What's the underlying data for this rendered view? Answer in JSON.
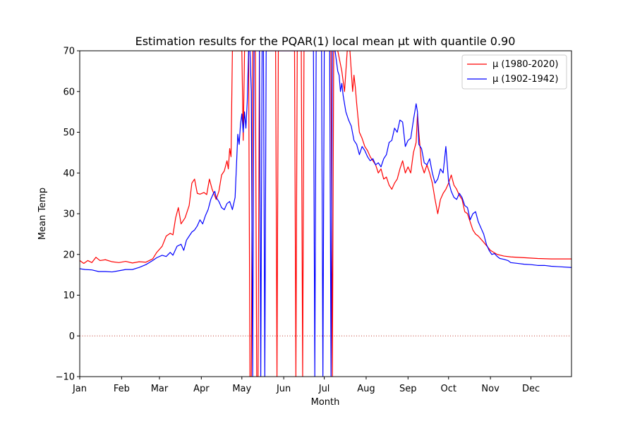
{
  "chart_data": {
    "type": "line",
    "title": "Estimation results for the PQAR(1) local mean μt with quantile 0.90",
    "xlabel": "Month",
    "ylabel": "Mean Temp",
    "ylim": [
      -10,
      70
    ],
    "xlim": [
      1,
      365
    ],
    "grid": false,
    "legend_position": "top-right",
    "x_ticks": [
      {
        "day": 1,
        "label": "Jan"
      },
      {
        "day": 32,
        "label": "Feb"
      },
      {
        "day": 60,
        "label": "Mar"
      },
      {
        "day": 91,
        "label": "Apr"
      },
      {
        "day": 121,
        "label": "May"
      },
      {
        "day": 152,
        "label": "Jun"
      },
      {
        "day": 182,
        "label": "Jul"
      },
      {
        "day": 213,
        "label": "Aug"
      },
      {
        "day": 244,
        "label": "Sep"
      },
      {
        "day": 274,
        "label": "Oct"
      },
      {
        "day": 305,
        "label": "Nov"
      },
      {
        "day": 335,
        "label": "Dec"
      }
    ],
    "y_ticks": [
      -10,
      0,
      10,
      20,
      30,
      40,
      50,
      60,
      70
    ],
    "reference_line": {
      "y": 0,
      "style": "dotted",
      "color": "#c0392b"
    },
    "series": [
      {
        "name": "μ (1980-2020)",
        "color": "#ff0000",
        "points": [
          [
            1,
            18.5
          ],
          [
            4,
            17.8
          ],
          [
            7,
            18.5
          ],
          [
            10,
            18.0
          ],
          [
            13,
            19.3
          ],
          [
            16,
            18.5
          ],
          [
            20,
            18.7
          ],
          [
            25,
            18.2
          ],
          [
            30,
            18.0
          ],
          [
            35,
            18.3
          ],
          [
            40,
            17.9
          ],
          [
            45,
            18.2
          ],
          [
            50,
            18.1
          ],
          [
            55,
            18.9
          ],
          [
            58,
            20.5
          ],
          [
            62,
            22.0
          ],
          [
            65,
            24.5
          ],
          [
            68,
            25.2
          ],
          [
            70,
            24.8
          ],
          [
            72,
            29.0
          ],
          [
            74,
            31.5
          ],
          [
            76,
            27.5
          ],
          [
            79,
            29.0
          ],
          [
            82,
            32.0
          ],
          [
            84,
            37.5
          ],
          [
            86,
            38.5
          ],
          [
            88,
            35.0
          ],
          [
            90,
            34.8
          ],
          [
            93,
            35.2
          ],
          [
            95,
            34.7
          ],
          [
            97,
            38.5
          ],
          [
            99,
            36.0
          ],
          [
            102,
            33.5
          ],
          [
            104,
            35.5
          ],
          [
            106,
            39.5
          ],
          [
            108,
            40.5
          ],
          [
            110,
            43.0
          ],
          [
            111,
            41.0
          ],
          [
            112,
            46.0
          ],
          [
            113,
            44.0
          ],
          [
            114,
            70.0
          ],
          [
            121,
            70.0
          ],
          [
            122,
            48.0
          ],
          [
            123,
            70.0
          ],
          [
            126,
            70.0
          ],
          [
            127,
            -10.0
          ],
          [
            128,
            -10.0
          ],
          [
            129,
            70.0
          ],
          [
            131,
            70.0
          ],
          [
            132,
            -10.0
          ],
          [
            133,
            -10.0
          ],
          [
            134,
            70.0
          ],
          [
            146,
            70.0
          ],
          [
            147,
            -10.0
          ],
          [
            148,
            70.0
          ],
          [
            160,
            70.0
          ],
          [
            161,
            -10.0
          ],
          [
            162,
            70.0
          ],
          [
            165,
            70.0
          ],
          [
            166,
            -10.0
          ],
          [
            167,
            70.0
          ],
          [
            187,
            70.0
          ],
          [
            188,
            -10.0
          ],
          [
            189,
            70.0
          ],
          [
            192,
            70.0
          ],
          [
            195,
            65.0
          ],
          [
            197,
            60.0
          ],
          [
            199,
            70.0
          ],
          [
            201,
            70.0
          ],
          [
            203,
            60.0
          ],
          [
            204,
            64.0
          ],
          [
            205,
            61.0
          ],
          [
            206,
            57.0
          ],
          [
            208,
            50.0
          ],
          [
            210,
            48.5
          ],
          [
            212,
            46.5
          ],
          [
            214,
            45.5
          ],
          [
            216,
            44.0
          ],
          [
            218,
            43.0
          ],
          [
            220,
            42.0
          ],
          [
            222,
            40.0
          ],
          [
            224,
            41.0
          ],
          [
            226,
            38.5
          ],
          [
            228,
            39.0
          ],
          [
            230,
            37.0
          ],
          [
            232,
            36.0
          ],
          [
            234,
            37.5
          ],
          [
            236,
            38.5
          ],
          [
            238,
            41.0
          ],
          [
            240,
            43.0
          ],
          [
            242,
            40.0
          ],
          [
            244,
            41.5
          ],
          [
            246,
            40.0
          ],
          [
            248,
            45.0
          ],
          [
            250,
            47.5
          ],
          [
            251,
            54.5
          ],
          [
            252,
            50.0
          ],
          [
            254,
            42.0
          ],
          [
            256,
            40.0
          ],
          [
            258,
            42.0
          ],
          [
            260,
            40.0
          ],
          [
            262,
            37.5
          ],
          [
            264,
            33.5
          ],
          [
            266,
            30.0
          ],
          [
            268,
            33.5
          ],
          [
            270,
            35.0
          ],
          [
            272,
            36.0
          ],
          [
            274,
            37.5
          ],
          [
            276,
            39.5
          ],
          [
            278,
            37.0
          ],
          [
            280,
            36.0
          ],
          [
            282,
            34.5
          ],
          [
            284,
            33.5
          ],
          [
            286,
            30.5
          ],
          [
            288,
            30.0
          ],
          [
            290,
            28.0
          ],
          [
            292,
            26.0
          ],
          [
            294,
            25.0
          ],
          [
            296,
            24.5
          ],
          [
            300,
            23.0
          ],
          [
            305,
            21.0
          ],
          [
            310,
            20.0
          ],
          [
            315,
            19.6
          ],
          [
            320,
            19.4
          ],
          [
            330,
            19.2
          ],
          [
            340,
            19.0
          ],
          [
            350,
            18.9
          ],
          [
            365,
            18.9
          ]
        ]
      },
      {
        "name": "μ (1902-1942)",
        "color": "#0000ff",
        "points": [
          [
            1,
            16.5
          ],
          [
            5,
            16.3
          ],
          [
            10,
            16.2
          ],
          [
            15,
            15.8
          ],
          [
            20,
            15.8
          ],
          [
            25,
            15.7
          ],
          [
            30,
            16.0
          ],
          [
            35,
            16.3
          ],
          [
            40,
            16.3
          ],
          [
            45,
            16.8
          ],
          [
            50,
            17.5
          ],
          [
            55,
            18.5
          ],
          [
            58,
            19.2
          ],
          [
            62,
            19.8
          ],
          [
            65,
            19.5
          ],
          [
            68,
            20.5
          ],
          [
            70,
            19.8
          ],
          [
            73,
            22.0
          ],
          [
            76,
            22.5
          ],
          [
            78,
            21.0
          ],
          [
            80,
            23.5
          ],
          [
            82,
            24.5
          ],
          [
            84,
            25.5
          ],
          [
            86,
            26.0
          ],
          [
            88,
            27.0
          ],
          [
            90,
            28.5
          ],
          [
            92,
            27.5
          ],
          [
            94,
            29.5
          ],
          [
            96,
            31.0
          ],
          [
            98,
            33.5
          ],
          [
            100,
            35.0
          ],
          [
            101,
            35.5
          ],
          [
            102,
            34.0
          ],
          [
            104,
            33.0
          ],
          [
            106,
            31.5
          ],
          [
            108,
            31.0
          ],
          [
            110,
            32.5
          ],
          [
            112,
            33.0
          ],
          [
            114,
            31.0
          ],
          [
            116,
            34.0
          ],
          [
            118,
            49.5
          ],
          [
            119,
            47.0
          ],
          [
            120,
            52.0
          ],
          [
            121,
            54.5
          ],
          [
            122,
            50.0
          ],
          [
            123,
            55.0
          ],
          [
            124,
            51.0
          ],
          [
            125,
            57.5
          ],
          [
            126,
            70.0
          ],
          [
            127,
            70.0
          ],
          [
            128,
            60.0
          ],
          [
            129,
            -10.0
          ],
          [
            130,
            70.0
          ],
          [
            134,
            70.0
          ],
          [
            135,
            -10.0
          ],
          [
            136,
            70.0
          ],
          [
            137,
            70.0
          ],
          [
            138,
            -10.0
          ],
          [
            139,
            70.0
          ],
          [
            174,
            70.0
          ],
          [
            175,
            -10.0
          ],
          [
            176,
            70.0
          ],
          [
            180,
            70.0
          ],
          [
            181,
            -10.0
          ],
          [
            182,
            70.0
          ],
          [
            186,
            70.0
          ],
          [
            187,
            -10.0
          ],
          [
            188,
            70.0
          ],
          [
            190,
            70.0
          ],
          [
            192,
            65.0
          ],
          [
            193,
            64.0
          ],
          [
            194,
            60.0
          ],
          [
            195,
            62.0
          ],
          [
            196,
            59.0
          ],
          [
            198,
            55.0
          ],
          [
            200,
            53.0
          ],
          [
            202,
            51.5
          ],
          [
            204,
            48.0
          ],
          [
            206,
            47.0
          ],
          [
            208,
            44.5
          ],
          [
            210,
            46.5
          ],
          [
            212,
            45.5
          ],
          [
            214,
            44.0
          ],
          [
            216,
            43.0
          ],
          [
            218,
            43.5
          ],
          [
            220,
            42.0
          ],
          [
            222,
            42.5
          ],
          [
            224,
            41.5
          ],
          [
            226,
            43.5
          ],
          [
            228,
            44.5
          ],
          [
            230,
            47.5
          ],
          [
            232,
            48.0
          ],
          [
            234,
            51.0
          ],
          [
            236,
            50.0
          ],
          [
            238,
            53.0
          ],
          [
            240,
            52.5
          ],
          [
            242,
            46.5
          ],
          [
            244,
            48.0
          ],
          [
            246,
            48.5
          ],
          [
            248,
            53.0
          ],
          [
            250,
            57.0
          ],
          [
            251,
            55.0
          ],
          [
            252,
            47.0
          ],
          [
            254,
            46.0
          ],
          [
            256,
            42.5
          ],
          [
            258,
            42.0
          ],
          [
            260,
            43.5
          ],
          [
            262,
            40.0
          ],
          [
            264,
            37.5
          ],
          [
            266,
            38.5
          ],
          [
            268,
            41.0
          ],
          [
            270,
            40.0
          ],
          [
            272,
            46.5
          ],
          [
            274,
            38.0
          ],
          [
            276,
            35.5
          ],
          [
            278,
            34.0
          ],
          [
            280,
            33.5
          ],
          [
            282,
            35.0
          ],
          [
            284,
            34.0
          ],
          [
            286,
            32.0
          ],
          [
            288,
            31.5
          ],
          [
            290,
            28.5
          ],
          [
            292,
            30.0
          ],
          [
            294,
            30.5
          ],
          [
            296,
            28.0
          ],
          [
            298,
            26.5
          ],
          [
            300,
            25.0
          ],
          [
            302,
            22.5
          ],
          [
            304,
            21.0
          ],
          [
            306,
            20.0
          ],
          [
            308,
            20.2
          ],
          [
            310,
            19.5
          ],
          [
            312,
            19.0
          ],
          [
            315,
            18.8
          ],
          [
            318,
            18.5
          ],
          [
            320,
            18.0
          ],
          [
            325,
            17.8
          ],
          [
            330,
            17.6
          ],
          [
            335,
            17.5
          ],
          [
            340,
            17.3
          ],
          [
            345,
            17.3
          ],
          [
            350,
            17.1
          ],
          [
            355,
            17.0
          ],
          [
            365,
            16.8
          ]
        ]
      }
    ]
  }
}
